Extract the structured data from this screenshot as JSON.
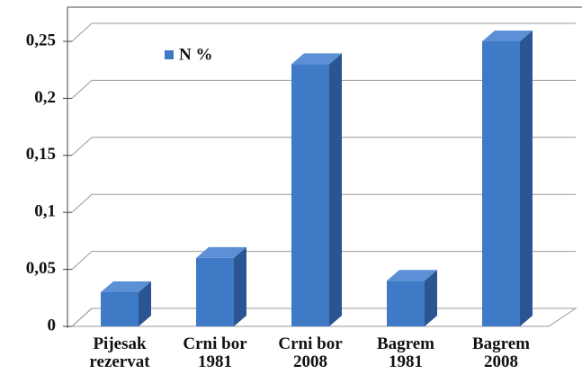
{
  "chart_data": {
    "type": "bar",
    "categories": [
      "Pijesak\nrezervat",
      "Crni bor\n1981",
      "Crni bor\n2008",
      "Bagrem\n1981",
      "Bagrem\n2008"
    ],
    "series": [
      {
        "name": "N %",
        "color": "#3f7ac6",
        "values": [
          0.03,
          0.06,
          0.23,
          0.04,
          0.25
        ]
      }
    ],
    "ylim": [
      0,
      0.25
    ],
    "yticks": [
      0,
      {
        "value": 0.05,
        "label": "0,05"
      },
      {
        "value": 0.1,
        "label": "0,1"
      },
      {
        "value": 0.15,
        "label": "0,15"
      },
      {
        "value": 0.2,
        "label": "0,2"
      },
      {
        "value": 0.25,
        "label": "0,25"
      }
    ],
    "grid": true,
    "legend": "top-left"
  }
}
